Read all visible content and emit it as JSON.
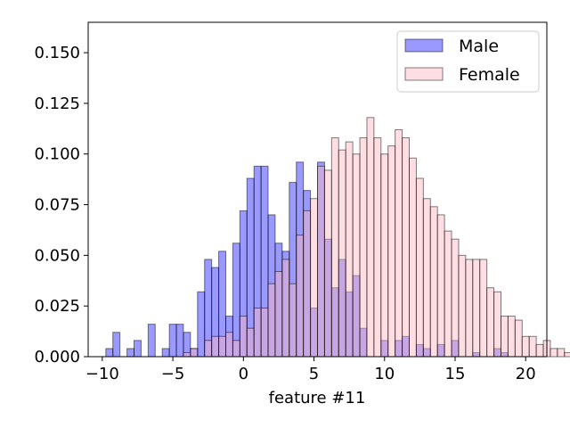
{
  "chart_data": {
    "type": "bar",
    "xlabel": "feature #11",
    "ylabel": "",
    "xlim": [
      -11,
      21.5
    ],
    "ylim": [
      0,
      0.165
    ],
    "xticks": [
      -10,
      -5,
      0,
      5,
      10,
      15,
      20
    ],
    "xtick_labels": [
      "−10",
      "−5",
      "0",
      "5",
      "10",
      "15",
      "20"
    ],
    "yticks": [
      0,
      0.025,
      0.05,
      0.075,
      0.1,
      0.125,
      0.15
    ],
    "ytick_labels": [
      "0.000",
      "0.025",
      "0.050",
      "0.075",
      "0.100",
      "0.125",
      "0.150"
    ],
    "legend_position": "top-right",
    "series": [
      {
        "name": "Male",
        "color": "#0000ff",
        "alpha": 0.4,
        "edge_color": "#000000",
        "bin_start": -9.75,
        "bin_width": 0.5,
        "values": [
          0.004,
          0.012,
          0,
          0.004,
          0.008,
          0,
          0.016,
          0,
          0.004,
          0.016,
          0.016,
          0.012,
          0.004,
          0.032,
          0.048,
          0.044,
          0.052,
          0.02,
          0.056,
          0.072,
          0.088,
          0.094,
          0.094,
          0.07,
          0.056,
          0.052,
          0.086,
          0.096,
          0.082,
          0.024,
          0.096,
          0.058,
          0.034,
          0.048,
          0.032,
          0.04,
          0.014,
          0,
          0,
          0.008,
          0,
          0.008,
          0.01,
          0,
          0.006,
          0.004,
          0,
          0.006,
          0,
          0.008,
          0,
          0,
          0.002,
          0,
          0,
          0.004,
          0.002,
          0,
          0,
          0,
          0,
          0,
          0,
          0,
          0,
          0,
          0,
          0,
          0
        ],
        "values_overlay_note": "",
        "peaks": []
      },
      {
        "name": "Female",
        "color": "#ffb6c1",
        "alpha": 0.45,
        "edge_color": "#000000",
        "bin_start": -4.25,
        "bin_width": 0.5,
        "values": [
          0.002,
          0.004,
          0,
          0.008,
          0.01,
          0.01,
          0.012,
          0.008,
          0.02,
          0.014,
          0.024,
          0.024,
          0.036,
          0.042,
          0.048,
          0.036,
          0.06,
          0.072,
          0.078,
          0.094,
          0.092,
          0.108,
          0.102,
          0.106,
          0.1,
          0.108,
          0.118,
          0.108,
          0.1,
          0.104,
          0.112,
          0.108,
          0.098,
          0.088,
          0.078,
          0.074,
          0.07,
          0.062,
          0.058,
          0.05,
          0.048,
          0.048,
          0.048,
          0.034,
          0.032,
          0.02,
          0.02,
          0.018,
          0.01,
          0.01,
          0.006,
          0.008,
          0.004,
          0.004,
          0.002,
          0.002,
          0,
          0.002,
          0,
          0,
          0,
          0.002
        ],
        "peaks": []
      }
    ]
  }
}
